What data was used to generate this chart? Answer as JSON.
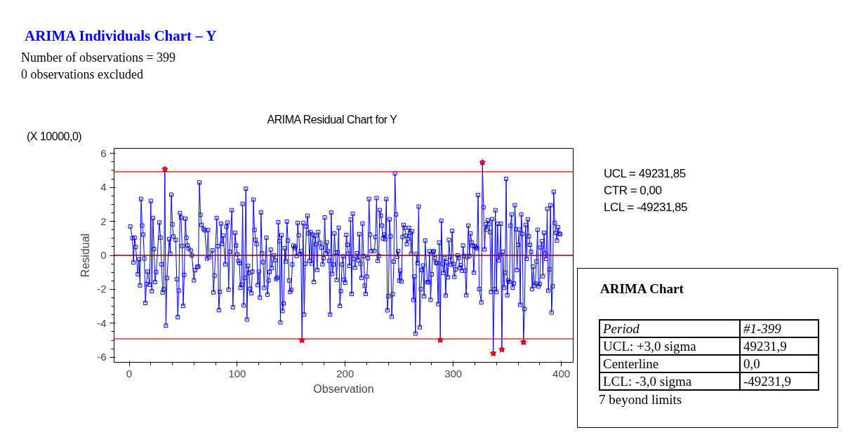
{
  "chart_data": {
    "type": "line",
    "title": "ARIMA Individuals Chart – Y",
    "xlabel": "Observation",
    "ylabel": "Residual",
    "annotations": [
      "Number of observations = 399",
      "0 observations excluded",
      "ARIMA Residual Chart for Y",
      "(X 10000,0)",
      "ARIMA Chart",
      "Period",
      "#1-399",
      "UCL: +3,0 sigma",
      "49231,9",
      "Centerline",
      "0,0",
      "LCL: -3,0 sigma",
      "-49231,9",
      "7 beyond limits",
      "UCL = 49231,85",
      "CTR = 0,00",
      "LCL = -49231,85"
    ],
    "xlim": [
      -14,
      411
    ],
    "ylim": [
      -6.3,
      6.3
    ],
    "xticks": [
      0,
      100,
      200,
      300,
      400
    ],
    "yticks": [
      -6,
      -4,
      -2,
      0,
      2,
      4,
      6
    ],
    "grid": false,
    "line_style": "solid",
    "ref_lines": [
      {
        "axis": "y",
        "value": 4.923185,
        "color": "#ff0000"
      },
      {
        "axis": "y",
        "value": 0,
        "color": "#8b0000"
      },
      {
        "axis": "y",
        "value": -4.923185,
        "color": "#ff0000"
      }
    ],
    "series": [
      {
        "color": "#0000ff",
        "marker": "square",
        "x": [
          1,
          3,
          4,
          5,
          6,
          8,
          9,
          10,
          11,
          12,
          13,
          14,
          15,
          16,
          17,
          19,
          20,
          21,
          22,
          23,
          24,
          25,
          28,
          29,
          30,
          31,
          32,
          33,
          34,
          35,
          37,
          38,
          39,
          40,
          41,
          43,
          44,
          45,
          46,
          47,
          48,
          49,
          50,
          51,
          52,
          53,
          54,
          55,
          57,
          58,
          60,
          61,
          63,
          64,
          65,
          66,
          67,
          69,
          70,
          72,
          73,
          74,
          77,
          78,
          79,
          81,
          82,
          83,
          84,
          85,
          86,
          87,
          89,
          90,
          91,
          92,
          93,
          95,
          96,
          98,
          99,
          100,
          101,
          102,
          103,
          104,
          105,
          106,
          107,
          108,
          109,
          110,
          111,
          112,
          113,
          114,
          115,
          116,
          117,
          118,
          119,
          120,
          121,
          122,
          123,
          124,
          125,
          127,
          128,
          129,
          130,
          131,
          132,
          134,
          135,
          136,
          137,
          138,
          139,
          140,
          141,
          142,
          143,
          144,
          145,
          146,
          147,
          148,
          149,
          150,
          151,
          152,
          153,
          154,
          155,
          156,
          157,
          158,
          159,
          160,
          161,
          162,
          163,
          164,
          165,
          166,
          167,
          168,
          169,
          170,
          171,
          172,
          173,
          174,
          175,
          177,
          178,
          179,
          180,
          181,
          182,
          183,
          184,
          185,
          186,
          187,
          188,
          189,
          190,
          191,
          192,
          193,
          194,
          195,
          196,
          197,
          198,
          199,
          200,
          201,
          202,
          203,
          204,
          205,
          206,
          207,
          208,
          209,
          211,
          212,
          213,
          214,
          215,
          216,
          217,
          218,
          219,
          220,
          221,
          222,
          223,
          224,
          227,
          228,
          229,
          230,
          231,
          232,
          233,
          234,
          235,
          236,
          237,
          238,
          239,
          240,
          241,
          242,
          243,
          244,
          245,
          246,
          247,
          248,
          249,
          250,
          251,
          252,
          253,
          254,
          255,
          256,
          257,
          258,
          259,
          260,
          261,
          262,
          263,
          264,
          265,
          266,
          267,
          268,
          269,
          270,
          271,
          272,
          273,
          274,
          276,
          277,
          278,
          279,
          280,
          281,
          282,
          283,
          284,
          285,
          286,
          287,
          288,
          289,
          290,
          291,
          292,
          293,
          294,
          295,
          296,
          297,
          298,
          299,
          300,
          301,
          302,
          304,
          305,
          306,
          307,
          308,
          309,
          310,
          311,
          312,
          313,
          314,
          315,
          316,
          317,
          318,
          319,
          320,
          321,
          322,
          323,
          324,
          326,
          327,
          328,
          329,
          330,
          331,
          332,
          333,
          334,
          335,
          336,
          337,
          338,
          339,
          340,
          341,
          342,
          343,
          344,
          345,
          346,
          347,
          348,
          349,
          350,
          351,
          352,
          353,
          354,
          355,
          356,
          357,
          358,
          359,
          360,
          361,
          362,
          363,
          364,
          365,
          366,
          367,
          368,
          369,
          370,
          371,
          372,
          373,
          374,
          375,
          376,
          377,
          378,
          379,
          380,
          381,
          382,
          383,
          384,
          385,
          386,
          387,
          388,
          389,
          390,
          391,
          392,
          393,
          394,
          395,
          396,
          397,
          398,
          399
        ],
        "values": [
          1.7,
          1.01,
          -0.42,
          1.04,
          0.5,
          -1.11,
          -0.24,
          -1.77,
          3.32,
          1.75,
          1.22,
          -0.19,
          -2.81,
          -1.69,
          -0.96,
          -1.73,
          3.2,
          -2.11,
          2.2,
          0.37,
          -1.57,
          -0.98,
          1.93,
          1.04,
          -0.53,
          -2.19,
          -2.0,
          5.07,
          -4.14,
          -1.34,
          0.96,
          0.1,
          3.57,
          1.83,
          1.11,
          0.91,
          -1.4,
          -3.64,
          -2.08,
          2.49,
          2.22,
          0.55,
          -2.98,
          -1.15,
          2.16,
          1.04,
          0.58,
          0.4,
          0.28,
          0.0,
          -1.47,
          -0.87,
          -0.68,
          -0.66,
          4.29,
          2.38,
          1.79,
          1.55,
          1.47,
          -0.19,
          1.48,
          -0.11,
          0.29,
          -2.19,
          -1.19,
          2.2,
          0.54,
          -3.23,
          -2.15,
          1.87,
          0.68,
          1.16,
          -0.53,
          1.69,
          1.93,
          -2.02,
          0.21,
          2.66,
          -3.06,
          1.33,
          0.58,
          0.06,
          -0.32,
          -0.46,
          -1.9,
          -1.73,
          3.03,
          -2.95,
          -1.33,
          3.92,
          -3.78,
          -0.62,
          -1.04,
          -1.97,
          -2.23,
          -0.96,
          3.28,
          1.5,
          0.91,
          0.66,
          -1.75,
          -0.96,
          -2.49,
          2.53,
          0.12,
          -0.4,
          -1.91,
          1.04,
          -2.31,
          -1.48,
          -0.98,
          0.33,
          -0.75,
          0.01,
          -0.29,
          -1.4,
          -1.32,
          1.95,
          0.84,
          -3.95,
          1.18,
          -3.28,
          -2.83,
          0.42,
          -0.36,
          1.99,
          0.87,
          -1.48,
          -2.16,
          -2.04,
          -0.54,
          0.57,
          0.43,
          0.51,
          -0.04,
          1.91,
          1.18,
          0.07,
          0.24,
          -5.01,
          1.91,
          -3.49,
          -0.5,
          1.7,
          2.33,
          1.29,
          -0.32,
          1.37,
          -0.48,
          1.22,
          -1.57,
          1.15,
          0.65,
          -0.86,
          1.37,
          0.73,
          0.46,
          -0.53,
          -0.17,
          2.23,
          0.12,
          0.76,
          0.24,
          -0.32,
          -3.49,
          2.52,
          -1.09,
          -0.54,
          1.29,
          0.17,
          -1.45,
          0.17,
          1.62,
          -2.98,
          -2.11,
          -0.54,
          -0.06,
          -1.43,
          -1.61,
          1.2,
          0.62,
          0.1,
          -0.62,
          2.11,
          -2.27,
          2.45,
          -0.21,
          -0.73,
          0.12,
          -0.29,
          1.25,
          -0.5,
          -1.33,
          1.87,
          -0.04,
          -1.79,
          -2.27,
          -1.25,
          -0.17,
          3.32,
          1.22,
          0.25,
          0.26,
          1.08,
          3.37,
          -0.32,
          -0.04,
          2.66,
          2.34,
          1.75,
          1.0,
          1.22,
          0.94,
          3.32,
          -3.24,
          -2.41,
          2.12,
          1.12,
          -3.61,
          -2.29,
          -0.37,
          4.82,
          2.41,
          -0.08,
          0.25,
          -1.48,
          -0.91,
          -1.54,
          1.08,
          1.79,
          1.62,
          1.16,
          0.66,
          0.96,
          1.62,
          1.32,
          0.1,
          1.41,
          -2.62,
          -1.25,
          -4.61,
          0.07,
          -0.46,
          2.87,
          -4.24,
          -1.99,
          -0.87,
          -0.6,
          -2.41,
          0.87,
          -1.58,
          -1.58,
          0.24,
          -2.62,
          -1.12,
          0.19,
          0.24,
          -0.17,
          -0.44,
          -0.46,
          -2.87,
          0.75,
          -4.99,
          2.04,
          -0.5,
          -1.04,
          -0.17,
          -2.37,
          -0.42,
          -1.29,
          0.9,
          -0.08,
          -0.55,
          1.44,
          -0.5,
          -1.27,
          -0.83,
          0.0,
          -0.15,
          -0.73,
          -0.58,
          -0.9,
          0.58,
          -0.04,
          -0.9,
          -2.35,
          -0.11,
          1.75,
          -0.03,
          1.29,
          0.76,
          0.58,
          -1.02,
          0.53,
          0.47,
          0.4,
          3.55,
          -1.99,
          -2.77,
          5.47,
          2.83,
          0.35,
          1.83,
          1.51,
          2.06,
          1.83,
          1.37,
          -2.16,
          2.13,
          -5.78,
          -1.99,
          2.66,
          -2.16,
          1.86,
          -0.3,
          0.01,
          1.86,
          -5.55,
          0.21,
          -1.9,
          -1.02,
          4.5,
          -2.35,
          -1.48,
          -1.57,
          1.75,
          2.41,
          -1.9,
          -1.66,
          2.95,
          1.54,
          -0.87,
          0.62,
          1.51,
          -2.91,
          2.41,
          1.26,
          -5.12,
          -3.16,
          1.79,
          -0.21,
          2.12,
          1.12,
          0.62,
          0.21,
          -1.99,
          -0.66,
          -1.77,
          -1.66,
          -0.36,
          1.5,
          -1.83,
          -1.69,
          0.47,
          0.83,
          -1.23,
          1.33,
          0.12,
          -0.21,
          2.74,
          -2.08,
          -0.83,
          2.95,
          -3.37,
          -1.83,
          3.74,
          1.91,
          1.33,
          0.87,
          1.65,
          1.29,
          1.25
        ]
      },
      {
        "type": "scatter",
        "color": "#ff0000",
        "marker": "star",
        "x": [
          33,
          160,
          288,
          327,
          337,
          345,
          365
        ],
        "values": [
          5.07,
          -5.01,
          -4.99,
          5.47,
          -5.78,
          -5.55,
          -5.12
        ]
      }
    ]
  }
}
